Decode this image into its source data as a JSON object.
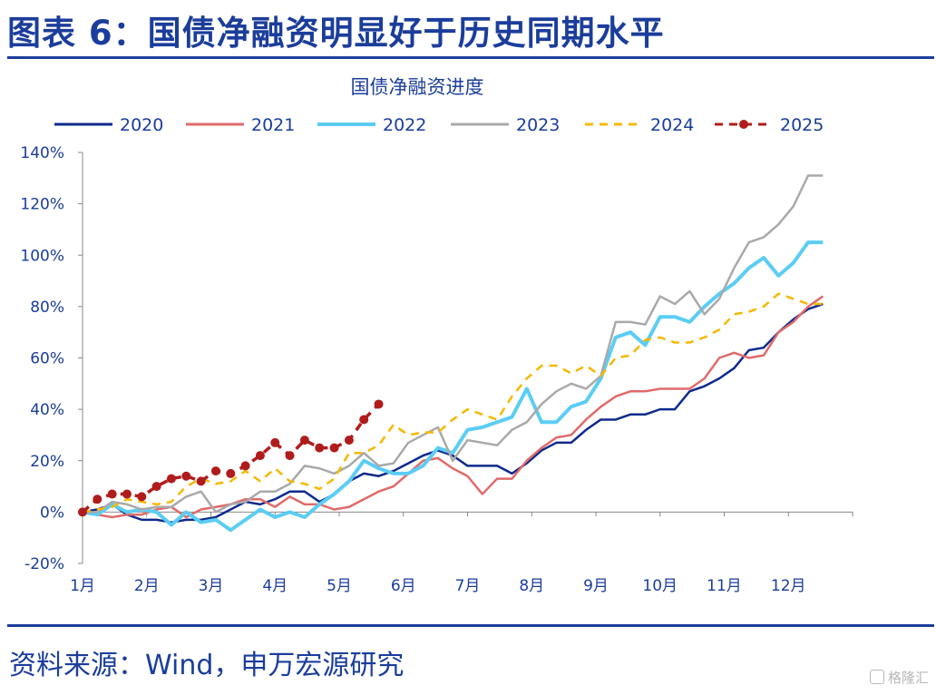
{
  "header": {
    "title": "图表 6：国债净融资明显好于历史同期水平"
  },
  "footer": {
    "source": "资料来源：Wind，申万宏源研究",
    "watermark": "格隆汇"
  },
  "chart_data": {
    "type": "line",
    "title": "国债净融资进度",
    "x_tick_labels": [
      "1月",
      "2月",
      "3月",
      "4月",
      "5月",
      "6月",
      "7月",
      "8月",
      "9月",
      "10月",
      "11月",
      "12月"
    ],
    "x_unit": "week of year",
    "xlim": [
      1,
      53
    ],
    "ylim": [
      -20,
      140
    ],
    "y_tick_labels": [
      "-20%",
      "0%",
      "20%",
      "40%",
      "60%",
      "80%",
      "100%",
      "120%",
      "140%"
    ],
    "y_ticks": [
      -20,
      0,
      20,
      40,
      60,
      80,
      100,
      120,
      140
    ],
    "grid": false,
    "legend_position": "top",
    "series": [
      {
        "name": "2020",
        "color": "#0e2a8c",
        "style": "solid",
        "values": [
          0,
          1,
          3,
          -1,
          -3,
          -3,
          -4,
          -3,
          -3,
          -2,
          1,
          4,
          3,
          5,
          8,
          8,
          4,
          7,
          12,
          15,
          14,
          16,
          19,
          22,
          24,
          22,
          18,
          18,
          18,
          15,
          19,
          24,
          27,
          27,
          32,
          36,
          36,
          38,
          38,
          40,
          40,
          47,
          49,
          52,
          56,
          63,
          64,
          70,
          75,
          79,
          81
        ]
      },
      {
        "name": "2021",
        "color": "#e06a6a",
        "style": "solid",
        "values": [
          0,
          -1,
          -2,
          -1,
          -1,
          1,
          2,
          -2,
          1,
          2,
          3,
          5,
          5,
          2,
          6,
          3,
          3,
          1,
          2,
          5,
          8,
          10,
          15,
          20,
          21,
          17,
          14,
          7,
          13,
          13,
          20,
          25,
          29,
          30,
          36,
          41,
          45,
          47,
          47,
          48,
          48,
          48,
          52,
          60,
          62,
          60,
          61,
          70,
          74,
          80,
          84
        ]
      },
      {
        "name": "2022",
        "color": "#5bcdf4",
        "style": "solid",
        "values": [
          0,
          -1,
          3,
          0,
          1,
          0,
          -5,
          0,
          -4,
          -3,
          -7,
          -3,
          1,
          -2,
          0,
          -2,
          3,
          7,
          12,
          20,
          17,
          15,
          15,
          18,
          25,
          23,
          32,
          33,
          35,
          37,
          48,
          35,
          35,
          41,
          43,
          52,
          68,
          70,
          65,
          76,
          76,
          74,
          80,
          85,
          89,
          95,
          99,
          92,
          97,
          105,
          105
        ]
      },
      {
        "name": "2023",
        "color": "#a9a9a9",
        "style": "solid",
        "values": [
          0,
          0,
          4,
          3,
          1,
          2,
          2,
          6,
          8,
          0,
          3,
          4,
          8,
          8,
          11,
          18,
          17,
          15,
          18,
          23,
          18,
          19,
          27,
          30,
          33,
          20,
          28,
          27,
          26,
          32,
          35,
          42,
          47,
          50,
          48,
          53,
          74,
          74,
          73,
          84,
          81,
          86,
          77,
          83,
          95,
          105,
          107,
          112,
          119,
          131,
          131
        ]
      },
      {
        "name": "2024",
        "color": "#f5b800",
        "style": "dashed",
        "values": [
          0,
          1,
          2,
          5,
          4,
          3,
          4,
          10,
          13,
          11,
          12,
          16,
          12,
          17,
          12,
          11,
          9,
          13,
          23,
          23,
          26,
          34,
          30,
          31,
          31,
          36,
          40,
          38,
          36,
          45,
          52,
          57,
          57,
          54,
          57,
          53,
          60,
          61,
          67,
          68,
          66,
          66,
          68,
          71,
          77,
          78,
          80,
          85,
          83,
          81,
          81
        ]
      },
      {
        "name": "2025",
        "color": "#b01c1c",
        "style": "dashed-markers",
        "values": [
          0,
          5,
          7,
          7,
          6,
          10,
          13,
          14,
          12,
          16,
          15,
          18,
          22,
          27,
          22,
          28,
          25,
          25,
          28,
          36,
          42
        ]
      }
    ]
  }
}
